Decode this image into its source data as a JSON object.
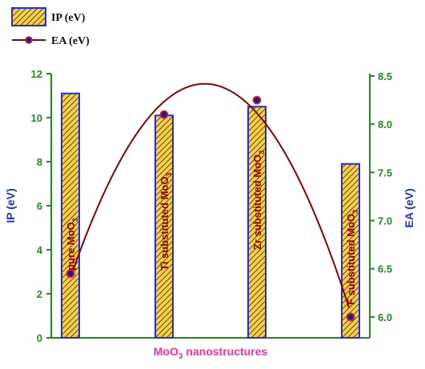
{
  "chart_data": {
    "type": "bar",
    "categories": [
      "pure MoO3",
      "Ti substituted MoO3",
      "Zr substituted MoO3",
      "F substituted MoO3"
    ],
    "category_labels": [
      {
        "base": "pure MoO",
        "sub": "3"
      },
      {
        "base": "Ti substituted MoO",
        "sub": "3"
      },
      {
        "base": "Zr substituted MoO",
        "sub": "3"
      },
      {
        "base": "F substituted MoO",
        "sub": "3"
      }
    ],
    "series": [
      {
        "name": "IP (eV)",
        "type": "bar",
        "axis": "left",
        "values": [
          11.1,
          10.1,
          10.5,
          7.9
        ]
      },
      {
        "name": "EA (eV)",
        "type": "line",
        "axis": "right",
        "values": [
          6.45,
          8.1,
          8.25,
          6.0
        ]
      }
    ],
    "xlabel": {
      "base": "MoO",
      "sub": "3",
      "rest": " nanostructures"
    },
    "ylabel": "IP (eV)",
    "y2label": "EA (eV)",
    "ylim": [
      0,
      12
    ],
    "y2lim": [
      5.8,
      8.5
    ],
    "yticks": [
      0,
      2,
      4,
      6,
      8,
      10,
      12
    ],
    "y2ticks": [
      "6.0",
      "6.5",
      "7.0",
      "7.5",
      "8.0",
      "8.5"
    ],
    "legend_position": "top-left",
    "grid": false,
    "colors": {
      "bar_fill": "#e8d84a",
      "bar_hatch": "#8b0000",
      "bar_border": "#1f2fe0",
      "line": "#8b0000",
      "marker_fill": "#1a1aa0",
      "marker_edge": "#e02020",
      "left_axis": "#1e8c1e",
      "right_axis": "#1e8c1e"
    }
  }
}
